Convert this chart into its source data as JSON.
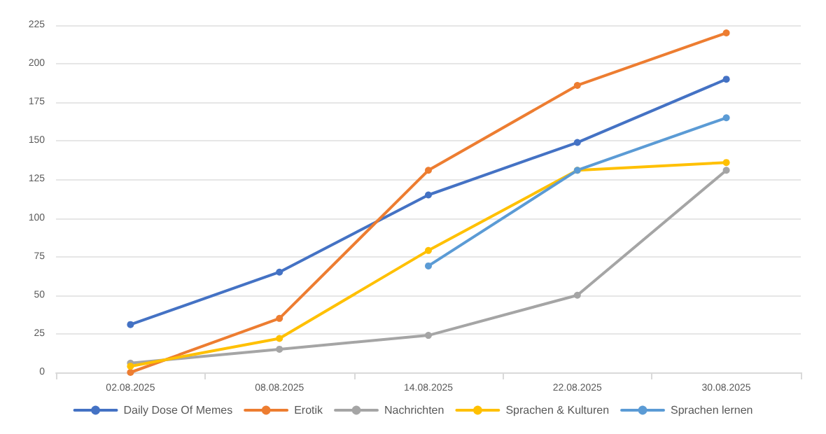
{
  "chart_data": {
    "type": "line",
    "categories": [
      "02.08.2025",
      "08.08.2025",
      "14.08.2025",
      "22.08.2025",
      "30.08.2025"
    ],
    "series": [
      {
        "name": "Daily Dose Of Memes",
        "color": "#4472c4",
        "values": [
          31,
          65,
          115,
          149,
          190
        ]
      },
      {
        "name": "Erotik",
        "color": "#ed7d31",
        "values": [
          0,
          35,
          131,
          186,
          220
        ]
      },
      {
        "name": "Nachrichten",
        "color": "#a5a5a5",
        "values": [
          6,
          15,
          24,
          50,
          131
        ]
      },
      {
        "name": "Sprachen & Kulturen",
        "color": "#ffc000",
        "values": [
          4,
          22,
          79,
          131,
          136
        ]
      },
      {
        "name": "Sprachen lernen",
        "color": "#5b9bd5",
        "values": [
          null,
          null,
          69,
          131,
          165
        ]
      }
    ],
    "ylim": [
      0,
      225
    ],
    "yticks": [
      0,
      25,
      50,
      75,
      100,
      125,
      150,
      175,
      200,
      225
    ],
    "grid": "y",
    "legend": "bottom",
    "marker": "circle",
    "line_style": "solid"
  }
}
